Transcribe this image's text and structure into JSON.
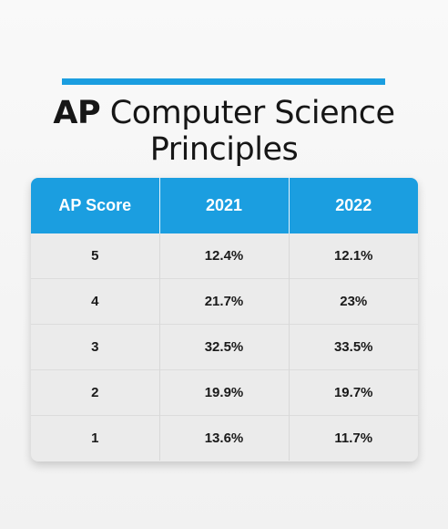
{
  "title": {
    "strong": "AP",
    "rest_line1": " Computer Science",
    "line2": "Principles"
  },
  "colors": {
    "accent": "#1b9ee0",
    "header_text": "#ffffff",
    "body_bg": "#ebebeb"
  },
  "table": {
    "headers": [
      "AP Score",
      "2021",
      "2022"
    ],
    "rows": [
      [
        "5",
        "12.4%",
        "12.1%"
      ],
      [
        "4",
        "21.7%",
        "23%"
      ],
      [
        "3",
        "32.5%",
        "33.5%"
      ],
      [
        "2",
        "19.9%",
        "19.7%"
      ],
      [
        "1",
        "13.6%",
        "11.7%"
      ]
    ]
  }
}
